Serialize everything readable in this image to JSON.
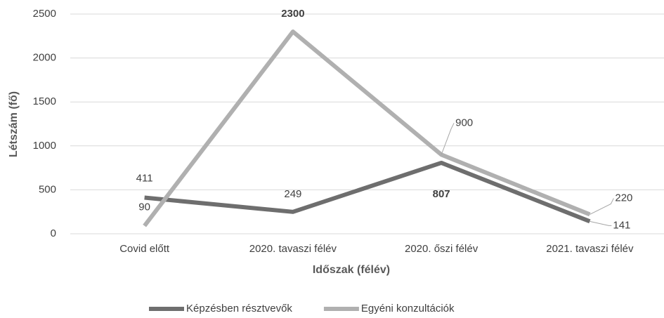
{
  "chart_data": {
    "type": "line",
    "x_label": "Időszak (félév)",
    "y_label": "Létszám (fő)",
    "categories": [
      "Covid előtt",
      "2020. tavaszi félév",
      "2020. őszi félév",
      "2021. tavaszi félév"
    ],
    "series": [
      {
        "name": "Képzésben résztvevők",
        "color": "#6e6e6e",
        "values": [
          411,
          249,
          807,
          141
        ]
      },
      {
        "name": "Egyéni konzultációk",
        "color": "#b0b0b0",
        "values": [
          90,
          2300,
          900,
          220
        ]
      }
    ],
    "ylim": [
      0,
      2500
    ],
    "yticks": [
      0,
      500,
      1000,
      1500,
      2000,
      2500
    ],
    "grid": true,
    "legend": "bottom"
  }
}
